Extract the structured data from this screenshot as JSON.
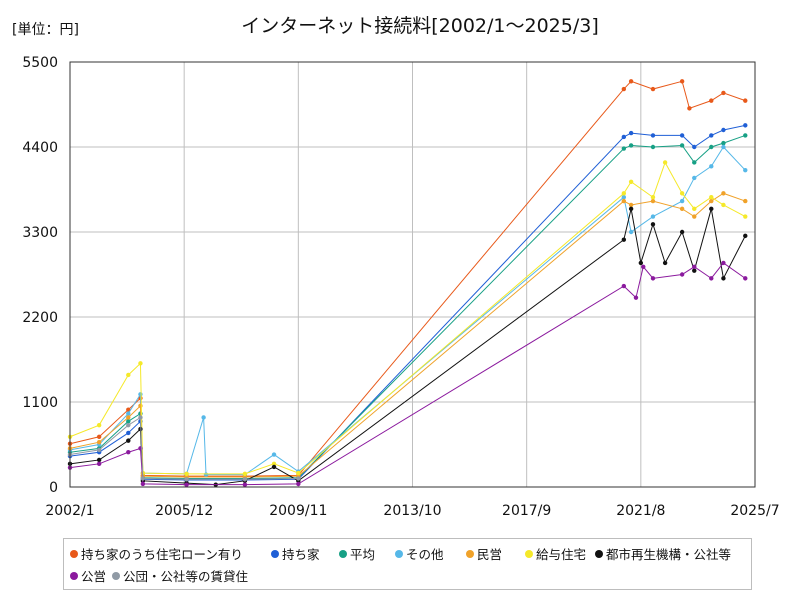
{
  "chart_data": {
    "type": "line",
    "title": "インターネット接続料[2002/1～2025/3]",
    "unit_label": "[単位：円]",
    "xlabel": "",
    "ylabel": "",
    "ylim": [
      0,
      5500
    ],
    "yticks": [
      "0",
      "1100",
      "2200",
      "3300",
      "4400",
      "5500"
    ],
    "xlim": [
      "2002-01",
      "2025-07"
    ],
    "xticks": [
      "2002/1",
      "2005/12",
      "2009/11",
      "2013/10",
      "2017/9",
      "2021/8",
      "2025/7"
    ],
    "grid": true,
    "legend_position": "bottom",
    "series": [
      {
        "name": "持ち家のうち住宅ローン有り",
        "color": "#e8591a",
        "points": [
          [
            "2002-01",
            560
          ],
          [
            "2003-01",
            650
          ],
          [
            "2004-01",
            1000
          ],
          [
            "2004-06",
            1150
          ],
          [
            "2004-07",
            150
          ],
          [
            "2006-01",
            140
          ],
          [
            "2008-01",
            140
          ],
          [
            "2009-11",
            150
          ],
          [
            "2021-01",
            5150
          ],
          [
            "2021-04",
            5250
          ],
          [
            "2022-01",
            5150
          ],
          [
            "2023-01",
            5250
          ],
          [
            "2023-04",
            4900
          ],
          [
            "2024-01",
            5000
          ],
          [
            "2024-06",
            5100
          ],
          [
            "2025-03",
            5000
          ]
        ]
      },
      {
        "name": "持ち家",
        "color": "#1f5fd6",
        "points": [
          [
            "2002-01",
            400
          ],
          [
            "2003-01",
            450
          ],
          [
            "2004-01",
            700
          ],
          [
            "2004-06",
            850
          ],
          [
            "2004-07",
            100
          ],
          [
            "2006-01",
            90
          ],
          [
            "2008-01",
            90
          ],
          [
            "2009-11",
            100
          ],
          [
            "2021-01",
            4530
          ],
          [
            "2021-04",
            4580
          ],
          [
            "2022-01",
            4550
          ],
          [
            "2023-01",
            4550
          ],
          [
            "2023-06",
            4400
          ],
          [
            "2024-01",
            4550
          ],
          [
            "2024-06",
            4620
          ],
          [
            "2025-03",
            4680
          ]
        ]
      },
      {
        "name": "平均",
        "color": "#17a085",
        "points": [
          [
            "2002-01",
            450
          ],
          [
            "2003-01",
            500
          ],
          [
            "2004-01",
            850
          ],
          [
            "2004-06",
            950
          ],
          [
            "2004-07",
            120
          ],
          [
            "2006-01",
            110
          ],
          [
            "2008-01",
            110
          ],
          [
            "2009-11",
            120
          ],
          [
            "2021-01",
            4380
          ],
          [
            "2021-04",
            4420
          ],
          [
            "2022-01",
            4400
          ],
          [
            "2023-01",
            4420
          ],
          [
            "2023-06",
            4200
          ],
          [
            "2024-01",
            4400
          ],
          [
            "2024-06",
            4450
          ],
          [
            "2025-03",
            4550
          ]
        ]
      },
      {
        "name": "その他",
        "color": "#56b8e8",
        "points": [
          [
            "2002-01",
            480
          ],
          [
            "2003-01",
            550
          ],
          [
            "2004-01",
            950
          ],
          [
            "2004-06",
            1200
          ],
          [
            "2004-07",
            180
          ],
          [
            "2006-01",
            170
          ],
          [
            "2006-08",
            900
          ],
          [
            "2006-09",
            160
          ],
          [
            "2008-01",
            160
          ],
          [
            "2009-01",
            420
          ],
          [
            "2009-11",
            200
          ],
          [
            "2021-01",
            3750
          ],
          [
            "2021-04",
            3300
          ],
          [
            "2022-01",
            3500
          ],
          [
            "2023-01",
            3700
          ],
          [
            "2023-06",
            4000
          ],
          [
            "2024-01",
            4150
          ],
          [
            "2024-06",
            4400
          ],
          [
            "2025-03",
            4100
          ]
        ]
      },
      {
        "name": "民営",
        "color": "#f0a22a",
        "points": [
          [
            "2002-01",
            500
          ],
          [
            "2003-01",
            580
          ],
          [
            "2004-01",
            900
          ],
          [
            "2004-06",
            1050
          ],
          [
            "2004-07",
            140
          ],
          [
            "2006-01",
            130
          ],
          [
            "2008-01",
            130
          ],
          [
            "2009-11",
            140
          ],
          [
            "2021-01",
            3700
          ],
          [
            "2021-04",
            3650
          ],
          [
            "2022-01",
            3700
          ],
          [
            "2023-01",
            3600
          ],
          [
            "2023-06",
            3500
          ],
          [
            "2024-01",
            3700
          ],
          [
            "2024-06",
            3800
          ],
          [
            "2025-03",
            3700
          ]
        ]
      },
      {
        "name": "給与住宅",
        "color": "#f5e92a",
        "points": [
          [
            "2002-01",
            650
          ],
          [
            "2003-01",
            800
          ],
          [
            "2004-01",
            1450
          ],
          [
            "2004-06",
            1600
          ],
          [
            "2004-07",
            180
          ],
          [
            "2006-01",
            170
          ],
          [
            "2008-01",
            170
          ],
          [
            "2009-01",
            300
          ],
          [
            "2009-11",
            180
          ],
          [
            "2021-01",
            3800
          ],
          [
            "2021-04",
            3950
          ],
          [
            "2022-01",
            3750
          ],
          [
            "2022-06",
            4200
          ],
          [
            "2023-01",
            3800
          ],
          [
            "2023-06",
            3600
          ],
          [
            "2024-01",
            3750
          ],
          [
            "2024-06",
            3650
          ],
          [
            "2025-03",
            3500
          ]
        ]
      },
      {
        "name": "都市再生機構・公社等",
        "color": "#111111",
        "points": [
          [
            "2002-01",
            300
          ],
          [
            "2003-01",
            350
          ],
          [
            "2004-01",
            600
          ],
          [
            "2004-06",
            750
          ],
          [
            "2004-07",
            80
          ],
          [
            "2006-01",
            50
          ],
          [
            "2007-01",
            30
          ],
          [
            "2008-01",
            80
          ],
          [
            "2009-01",
            260
          ],
          [
            "2009-11",
            80
          ],
          [
            "2021-01",
            3200
          ],
          [
            "2021-04",
            3600
          ],
          [
            "2021-08",
            2900
          ],
          [
            "2022-01",
            3400
          ],
          [
            "2022-06",
            2900
          ],
          [
            "2023-01",
            3300
          ],
          [
            "2023-06",
            2800
          ],
          [
            "2024-01",
            3600
          ],
          [
            "2024-06",
            2700
          ],
          [
            "2025-03",
            3250
          ]
        ]
      },
      {
        "name": "公営",
        "color": "#8b1a9e",
        "points": [
          [
            "2002-01",
            250
          ],
          [
            "2003-01",
            300
          ],
          [
            "2004-01",
            450
          ],
          [
            "2004-06",
            500
          ],
          [
            "2004-07",
            40
          ],
          [
            "2006-01",
            30
          ],
          [
            "2008-01",
            30
          ],
          [
            "2009-11",
            40
          ],
          [
            "2021-01",
            2600
          ],
          [
            "2021-06",
            2450
          ],
          [
            "2021-09",
            2850
          ],
          [
            "2022-01",
            2700
          ],
          [
            "2023-01",
            2750
          ],
          [
            "2023-06",
            2850
          ],
          [
            "2024-01",
            2700
          ],
          [
            "2024-06",
            2900
          ],
          [
            "2025-03",
            2700
          ]
        ]
      },
      {
        "name": "公団・公社等の賃貸住",
        "color": "#909aa5",
        "points": [
          [
            "2002-01",
            420
          ],
          [
            "2003-01",
            480
          ],
          [
            "2004-01",
            800
          ],
          [
            "2004-06",
            900
          ],
          [
            "2004-07",
            110
          ],
          [
            "2006-01",
            100
          ],
          [
            "2008-01",
            100
          ],
          [
            "2009-11",
            110
          ]
        ]
      }
    ]
  }
}
